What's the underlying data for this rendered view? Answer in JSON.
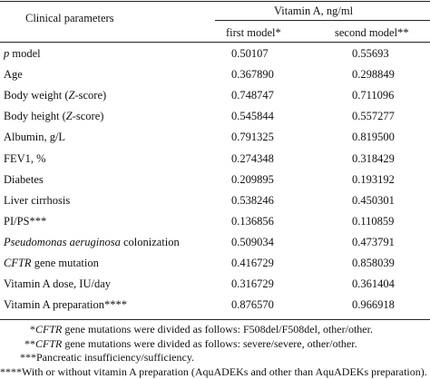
{
  "header": {
    "group_label": "Clinical parameters",
    "vitamin_label": "Vitamin A, ng/ml",
    "col1": "first model*",
    "col2": "second model**"
  },
  "rows": [
    {
      "prefix": "",
      "italic": "p",
      "suffix": " model",
      "v1": "0.50107",
      "v2": "0.55693"
    },
    {
      "prefix": "Age",
      "italic": "",
      "suffix": "",
      "v1": "0.367890",
      "v2": "0.298849"
    },
    {
      "prefix": "Body weight (",
      "italic": "Z",
      "suffix": "-score)",
      "v1": "0.748747",
      "v2": "0.711096"
    },
    {
      "prefix": "Body height (",
      "italic": "Z",
      "suffix": "-score)",
      "v1": "0.545844",
      "v2": "0.557277"
    },
    {
      "prefix": "Albumin, g/L",
      "italic": "",
      "suffix": "",
      "v1": "0.791325",
      "v2": "0.819500"
    },
    {
      "prefix": "FEV1, %",
      "italic": "",
      "suffix": "",
      "v1": "0.274348",
      "v2": "0.318429"
    },
    {
      "prefix": "Diabetes",
      "italic": "",
      "suffix": "",
      "v1": "0.209895",
      "v2": "0.193192"
    },
    {
      "prefix": "Liver cirrhosis",
      "italic": "",
      "suffix": "",
      "v1": "0.538246",
      "v2": "0.450301"
    },
    {
      "prefix": "PI/PS***",
      "italic": "",
      "suffix": "",
      "v1": "0.136856",
      "v2": "0.110859"
    },
    {
      "prefix": "",
      "italic": "Pseudomonas aeruginosa",
      "suffix": " colonization",
      "v1": "0.509034",
      "v2": "0.473791"
    },
    {
      "prefix": "",
      "italic": "CFTR",
      "suffix": " gene mutation",
      "v1": "0.416729",
      "v2": "0.858039"
    },
    {
      "prefix": "Vitamin A dose, IU/day",
      "italic": "",
      "suffix": "",
      "v1": "0.316729",
      "v2": "0.361404"
    },
    {
      "prefix": "Vitamin A preparation****",
      "italic": "",
      "suffix": "",
      "v1": "0.876570",
      "v2": "0.966918"
    }
  ],
  "notes": [
    {
      "lead": "*",
      "italic": "CFTR",
      "rest": " gene mutations were divided as follows: F508del/F508del, other/other."
    },
    {
      "lead": "**",
      "italic": "CFTR",
      "rest": " gene mutations were divided as follows: severe/severe, other/other."
    },
    {
      "lead": "***",
      "italic": "",
      "rest": "Pancreatic insufficiency/sufficiency."
    },
    {
      "lead": "****",
      "italic": "",
      "rest": "With or without vitamin A preparation (AquADEKs and other than AquADEKs preparation)."
    }
  ]
}
